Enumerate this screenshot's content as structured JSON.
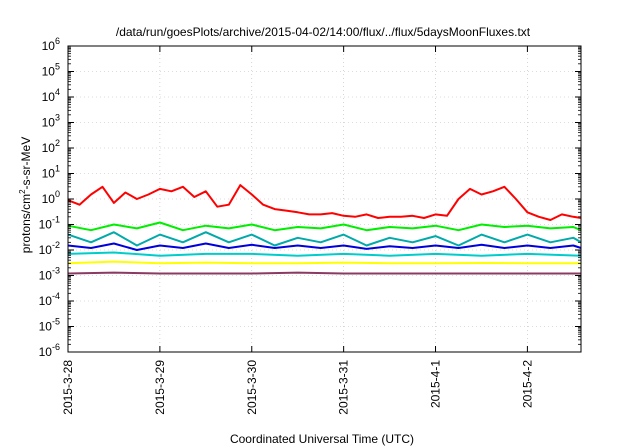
{
  "chart_data": {
    "type": "line",
    "title": "/data/run/goesPlots/archive/2015-04-02/14:00/flux/../flux/5daysMoonFluxes.txt",
    "xlabel": "Coordinated Universal Time (UTC)",
    "ylabel": {
      "prefix": "protons/cm",
      "superscript": "2",
      "suffix": "-s-sr-MeV"
    },
    "y_scale": "log",
    "ylim": [
      1e-06,
      1000000.0
    ],
    "y_ticks": [
      {
        "value": -6,
        "base": "10",
        "exp": "-6"
      },
      {
        "value": -5,
        "base": "10",
        "exp": "-5"
      },
      {
        "value": -4,
        "base": "10",
        "exp": "-4"
      },
      {
        "value": -3,
        "base": "10",
        "exp": "-3"
      },
      {
        "value": -2,
        "base": "10",
        "exp": "-2"
      },
      {
        "value": -1,
        "base": "10",
        "exp": "-1"
      },
      {
        "value": 0,
        "base": "10",
        "exp": "0"
      },
      {
        "value": 1,
        "base": "10",
        "exp": "1"
      },
      {
        "value": 2,
        "base": "10",
        "exp": "2"
      },
      {
        "value": 3,
        "base": "10",
        "exp": "3"
      },
      {
        "value": 4,
        "base": "10",
        "exp": "4"
      },
      {
        "value": 5,
        "base": "10",
        "exp": "5"
      },
      {
        "value": 6,
        "base": "10",
        "exp": "6"
      }
    ],
    "xlim": [
      "2015-03-28 00:00",
      "2015-04-02 14:00"
    ],
    "x_ticks": [
      "2015-3-28",
      "2015-3-29",
      "2015-3-30",
      "2015-3-31",
      "2015-4-1",
      "2015-4-2"
    ],
    "grid": true,
    "series": [
      {
        "color": "#ff0000",
        "x": [
          "2015-03-28 00:00",
          "2015-03-28 03:00",
          "2015-03-28 06:00",
          "2015-03-28 09:00",
          "2015-03-28 12:00",
          "2015-03-28 15:00",
          "2015-03-28 18:00",
          "2015-03-28 21:00",
          "2015-03-29 00:00",
          "2015-03-29 03:00",
          "2015-03-29 06:00",
          "2015-03-29 09:00",
          "2015-03-29 12:00",
          "2015-03-29 15:00",
          "2015-03-29 18:00",
          "2015-03-29 21:00",
          "2015-03-30 00:00",
          "2015-03-30 03:00",
          "2015-03-30 06:00",
          "2015-03-30 09:00",
          "2015-03-30 12:00",
          "2015-03-30 15:00",
          "2015-03-30 18:00",
          "2015-03-30 21:00",
          "2015-03-31 00:00",
          "2015-03-31 03:00",
          "2015-03-31 06:00",
          "2015-03-31 09:00",
          "2015-03-31 12:00",
          "2015-03-31 15:00",
          "2015-03-31 18:00",
          "2015-03-31 21:00",
          "2015-04-01 00:00",
          "2015-04-01 03:00",
          "2015-04-01 06:00",
          "2015-04-01 09:00",
          "2015-04-01 12:00",
          "2015-04-01 15:00",
          "2015-04-01 18:00",
          "2015-04-01 21:00",
          "2015-04-02 00:00",
          "2015-04-02 03:00",
          "2015-04-02 06:00",
          "2015-04-02 09:00",
          "2015-04-02 12:00",
          "2015-04-02 14:00"
        ],
        "values": [
          0.9,
          0.6,
          1.5,
          3.0,
          0.7,
          1.8,
          1.0,
          1.5,
          2.5,
          2.0,
          3.0,
          1.2,
          2.0,
          0.5,
          0.6,
          3.5,
          1.5,
          0.6,
          0.4,
          0.35,
          0.3,
          0.25,
          0.25,
          0.28,
          0.22,
          0.2,
          0.25,
          0.18,
          0.2,
          0.2,
          0.22,
          0.18,
          0.25,
          0.22,
          1.0,
          2.5,
          1.5,
          2.0,
          3.0,
          1.0,
          0.3,
          0.2,
          0.15,
          0.25,
          0.2,
          0.18
        ]
      },
      {
        "color": "#00ee00",
        "x": [
          "2015-03-28 00:00",
          "2015-03-28 06:00",
          "2015-03-28 12:00",
          "2015-03-28 18:00",
          "2015-03-29 00:00",
          "2015-03-29 06:00",
          "2015-03-29 12:00",
          "2015-03-29 18:00",
          "2015-03-30 00:00",
          "2015-03-30 06:00",
          "2015-03-30 12:00",
          "2015-03-30 18:00",
          "2015-03-31 00:00",
          "2015-03-31 06:00",
          "2015-03-31 12:00",
          "2015-03-31 18:00",
          "2015-04-01 00:00",
          "2015-04-01 06:00",
          "2015-04-01 12:00",
          "2015-04-01 18:00",
          "2015-04-02 00:00",
          "2015-04-02 06:00",
          "2015-04-02 12:00",
          "2015-04-02 14:00"
        ],
        "values": [
          0.09,
          0.06,
          0.1,
          0.07,
          0.12,
          0.06,
          0.09,
          0.07,
          0.1,
          0.06,
          0.08,
          0.07,
          0.1,
          0.06,
          0.08,
          0.07,
          0.09,
          0.06,
          0.1,
          0.08,
          0.09,
          0.07,
          0.08,
          0.06
        ]
      },
      {
        "color": "#00aaaa",
        "x": [
          "2015-03-28 00:00",
          "2015-03-28 06:00",
          "2015-03-28 12:00",
          "2015-03-28 18:00",
          "2015-03-29 00:00",
          "2015-03-29 06:00",
          "2015-03-29 12:00",
          "2015-03-29 18:00",
          "2015-03-30 00:00",
          "2015-03-30 06:00",
          "2015-03-30 12:00",
          "2015-03-30 18:00",
          "2015-03-31 00:00",
          "2015-03-31 06:00",
          "2015-03-31 12:00",
          "2015-03-31 18:00",
          "2015-04-01 00:00",
          "2015-04-01 06:00",
          "2015-04-01 12:00",
          "2015-04-01 18:00",
          "2015-04-02 00:00",
          "2015-04-02 06:00",
          "2015-04-02 12:00",
          "2015-04-02 14:00"
        ],
        "values": [
          0.04,
          0.02,
          0.05,
          0.015,
          0.04,
          0.02,
          0.05,
          0.02,
          0.04,
          0.015,
          0.03,
          0.02,
          0.04,
          0.015,
          0.03,
          0.02,
          0.035,
          0.015,
          0.04,
          0.02,
          0.04,
          0.02,
          0.03,
          0.02
        ]
      },
      {
        "color": "#0000dd",
        "x": [
          "2015-03-28 00:00",
          "2015-03-28 06:00",
          "2015-03-28 12:00",
          "2015-03-28 18:00",
          "2015-03-29 00:00",
          "2015-03-29 06:00",
          "2015-03-29 12:00",
          "2015-03-29 18:00",
          "2015-03-30 00:00",
          "2015-03-30 06:00",
          "2015-03-30 12:00",
          "2015-03-30 18:00",
          "2015-03-31 00:00",
          "2015-03-31 06:00",
          "2015-03-31 12:00",
          "2015-03-31 18:00",
          "2015-04-01 00:00",
          "2015-04-01 06:00",
          "2015-04-01 12:00",
          "2015-04-01 18:00",
          "2015-04-02 00:00",
          "2015-04-02 06:00",
          "2015-04-02 12:00",
          "2015-04-02 14:00"
        ],
        "values": [
          0.015,
          0.012,
          0.018,
          0.01,
          0.015,
          0.012,
          0.018,
          0.012,
          0.016,
          0.012,
          0.015,
          0.012,
          0.015,
          0.011,
          0.014,
          0.012,
          0.015,
          0.012,
          0.016,
          0.012,
          0.015,
          0.012,
          0.015,
          0.012
        ]
      },
      {
        "color": "#00cccc",
        "x": [
          "2015-03-28 00:00",
          "2015-03-28 12:00",
          "2015-03-29 00:00",
          "2015-03-29 12:00",
          "2015-03-30 00:00",
          "2015-03-30 12:00",
          "2015-03-31 00:00",
          "2015-03-31 12:00",
          "2015-04-01 00:00",
          "2015-04-01 12:00",
          "2015-04-02 00:00",
          "2015-04-02 14:00"
        ],
        "values": [
          0.007,
          0.008,
          0.006,
          0.007,
          0.007,
          0.006,
          0.007,
          0.006,
          0.007,
          0.006,
          0.007,
          0.006
        ]
      },
      {
        "color": "#ffff00",
        "x": [
          "2015-03-28 00:00",
          "2015-03-28 12:00",
          "2015-03-29 00:00",
          "2015-03-29 12:00",
          "2015-03-30 00:00",
          "2015-03-30 12:00",
          "2015-03-31 00:00",
          "2015-03-31 12:00",
          "2015-04-01 00:00",
          "2015-04-01 12:00",
          "2015-04-02 00:00",
          "2015-04-02 14:00"
        ],
        "values": [
          0.003,
          0.0035,
          0.003,
          0.0032,
          0.003,
          0.003,
          0.0032,
          0.003,
          0.003,
          0.0031,
          0.003,
          0.003
        ]
      },
      {
        "color": "#8b3a62",
        "x": [
          "2015-03-28 00:00",
          "2015-03-28 12:00",
          "2015-03-29 00:00",
          "2015-03-29 12:00",
          "2015-03-30 00:00",
          "2015-03-30 12:00",
          "2015-03-31 00:00",
          "2015-03-31 12:00",
          "2015-04-01 00:00",
          "2015-04-01 12:00",
          "2015-04-02 00:00",
          "2015-04-02 14:00"
        ],
        "values": [
          0.0012,
          0.0013,
          0.0012,
          0.0012,
          0.0012,
          0.0013,
          0.0012,
          0.0012,
          0.0012,
          0.0012,
          0.0012,
          0.0012
        ]
      }
    ]
  }
}
